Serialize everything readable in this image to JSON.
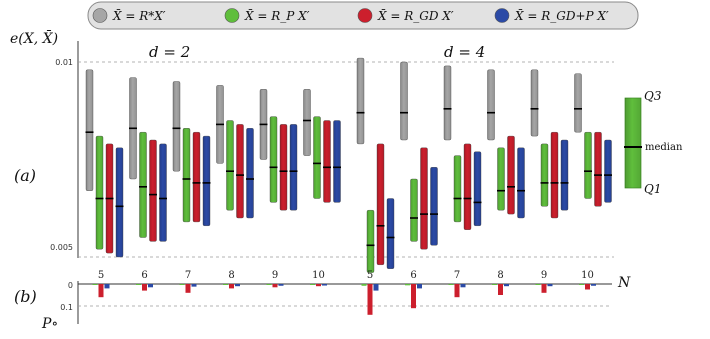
{
  "legend": [
    {
      "label": "X̄ = R*X′",
      "color": "#a6a6a6"
    },
    {
      "label": "X̄ = R_P X′",
      "color": "#5fbe3c"
    },
    {
      "label": "X̄ = R_GD X′",
      "color": "#cc1f2d"
    },
    {
      "label": "X̄ = R_GD+P X′",
      "color": "#2b4aa6"
    }
  ],
  "panel_a_label": "(a)",
  "panel_b_label": "(b)",
  "ylabel_a": "e(X, X̄)",
  "ylabel_b": "P∘",
  "xlabel_b": "N",
  "group_titles": [
    "d = 2",
    "d = 4"
  ],
  "side_legend": {
    "top": "Q3",
    "middle": "median",
    "bottom": "Q1"
  },
  "chart_data": [
    {
      "type": "box",
      "title": "",
      "ylabel": "e(X, X̄)",
      "ylim": [
        0.0043,
        0.0103
      ],
      "yticks": [
        0.005,
        0.01
      ],
      "ytick_labels": [
        "0.005",
        "0.01"
      ],
      "groups": [
        {
          "name": "d = 2",
          "categories": [
            "5",
            "6",
            "7",
            "8",
            "9",
            "10"
          ],
          "series": [
            {
              "name": "X̄ = R*X′",
              "q1": [
                0.0067,
                0.007,
                0.0072,
                0.0074,
                0.0075,
                0.0076
              ],
              "median": [
                0.0082,
                0.0083,
                0.0083,
                0.0084,
                0.0084,
                0.0085
              ],
              "q3": [
                0.0098,
                0.0096,
                0.0095,
                0.0094,
                0.0093,
                0.0093
              ]
            },
            {
              "name": "X̄ = R_P X′",
              "q1": [
                0.0052,
                0.0055,
                0.0059,
                0.0062,
                0.0064,
                0.0065
              ],
              "median": [
                0.0065,
                0.0068,
                0.007,
                0.0072,
                0.0073,
                0.0074
              ],
              "q3": [
                0.0081,
                0.0082,
                0.0083,
                0.0085,
                0.0086,
                0.0086
              ]
            },
            {
              "name": "X̄ = R_GD X′",
              "q1": [
                0.0051,
                0.0054,
                0.0059,
                0.006,
                0.0062,
                0.0064
              ],
              "median": [
                0.0065,
                0.0066,
                0.0069,
                0.0071,
                0.0072,
                0.0073
              ],
              "q3": [
                0.0079,
                0.008,
                0.0082,
                0.0084,
                0.0084,
                0.0085
              ]
            },
            {
              "name": "X̄ = R_GD+P X′",
              "q1": [
                0.005,
                0.0054,
                0.0058,
                0.006,
                0.0062,
                0.0064
              ],
              "median": [
                0.0063,
                0.0065,
                0.0069,
                0.007,
                0.0072,
                0.0073
              ],
              "q3": [
                0.0078,
                0.0079,
                0.0081,
                0.0083,
                0.0084,
                0.0085
              ]
            }
          ]
        },
        {
          "name": "d = 4",
          "categories": [
            "5",
            "6",
            "7",
            "8",
            "9",
            "10"
          ],
          "series": [
            {
              "name": "X̄ = R*X′",
              "q1": [
                0.0079,
                0.008,
                0.008,
                0.008,
                0.0081,
                0.0082
              ],
              "median": [
                0.0087,
                0.0087,
                0.0088,
                0.0087,
                0.0088,
                0.0088
              ],
              "q3": [
                0.0101,
                0.01,
                0.0099,
                0.0098,
                0.0098,
                0.0097
              ]
            },
            {
              "name": "X̄ = R_P X′",
              "q1": [
                0.0046,
                0.0054,
                0.0059,
                0.0062,
                0.0063,
                0.0065
              ],
              "median": [
                0.0053,
                0.006,
                0.0065,
                0.0067,
                0.0069,
                0.0072
              ],
              "q3": [
                0.0062,
                0.007,
                0.0076,
                0.0078,
                0.0079,
                0.0082
              ]
            },
            {
              "name": "X̄ = R_GD X′",
              "q1": [
                0.0048,
                0.0052,
                0.0057,
                0.0061,
                0.006,
                0.0063
              ],
              "median": [
                0.0058,
                0.0061,
                0.0065,
                0.0068,
                0.0069,
                0.0071
              ],
              "q3": [
                0.0079,
                0.0078,
                0.0079,
                0.0081,
                0.0082,
                0.0082
              ]
            },
            {
              "name": "X̄ = R_GD+P X′",
              "q1": [
                0.0047,
                0.0053,
                0.0058,
                0.006,
                0.0062,
                0.0064
              ],
              "median": [
                0.0055,
                0.0061,
                0.0064,
                0.0067,
                0.0069,
                0.0071
              ],
              "q3": [
                0.0065,
                0.0073,
                0.0077,
                0.0078,
                0.008,
                0.008
              ]
            }
          ]
        }
      ]
    },
    {
      "type": "bar",
      "title": "",
      "xlabel": "N",
      "ylabel": "P∘",
      "ylim": [
        0,
        0.15
      ],
      "yticks": [
        0,
        0.1
      ],
      "ytick_labels": [
        "0",
        "0.1"
      ],
      "groups": [
        {
          "name": "d = 2",
          "categories": [
            "5",
            "6",
            "7",
            "8",
            "9",
            "10"
          ],
          "series": [
            {
              "name": "X̄ = R_P X′",
              "values": [
                0.004,
                0.003,
                0.003,
                0.002,
                0.002,
                0.002
              ]
            },
            {
              "name": "X̄ = R_GD X′",
              "values": [
                0.06,
                0.03,
                0.04,
                0.02,
                0.015,
                0.01
              ]
            },
            {
              "name": "X̄ = R_GD+P X′",
              "values": [
                0.02,
                0.015,
                0.012,
                0.01,
                0.008,
                0.007
              ]
            }
          ]
        },
        {
          "name": "d = 4",
          "categories": [
            "5",
            "6",
            "7",
            "8",
            "9",
            "10"
          ],
          "series": [
            {
              "name": "X̄ = R_P X′",
              "values": [
                0.008,
                0.006,
                0.004,
                0.003,
                0.003,
                0.002
              ]
            },
            {
              "name": "X̄ = R_GD X′",
              "values": [
                0.14,
                0.11,
                0.06,
                0.05,
                0.04,
                0.025
              ]
            },
            {
              "name": "X̄ = R_GD+P X′",
              "values": [
                0.03,
                0.02,
                0.015,
                0.01,
                0.01,
                0.008
              ]
            }
          ]
        }
      ]
    }
  ]
}
